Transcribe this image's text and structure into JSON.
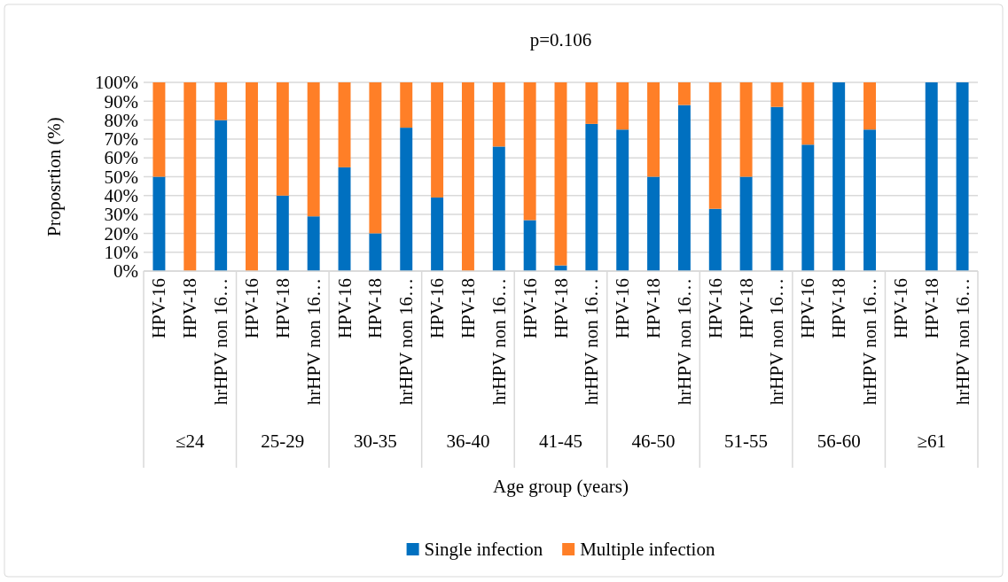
{
  "chart_data": {
    "type": "bar",
    "stacked": true,
    "title": "p=0.106",
    "xlabel": "Age group (years)",
    "ylabel": "Proposrtion (%)",
    "categories": [
      "HPV-16",
      "HPV-18",
      "hrHPV non 16…",
      "HPV-16",
      "HPV-18",
      "hrHPV non 16…",
      "HPV-16",
      "HPV-18",
      "hrHPV non 16…",
      "HPV-16",
      "HPV-18",
      "hrHPV non 16…",
      "HPV-16",
      "HPV-18",
      "hrHPV non 16…",
      "HPV-16",
      "HPV-18",
      "hrHPV non 16…",
      "HPV-16",
      "HPV-18",
      "hrHPV non 16…",
      "HPV-16",
      "HPV-18",
      "hrHPV non 16…",
      "HPV-16",
      "HPV-18",
      "hrHPV non 16…"
    ],
    "annotations": [
      "≤24",
      "25-29",
      "30-35",
      "36-40",
      "41-45",
      "46-50",
      "51-55",
      "56-60",
      "≥61"
    ],
    "series": [
      {
        "name": "Single infection",
        "color": "#0070c0",
        "values": [
          50,
          0,
          80,
          0,
          40,
          29,
          55,
          20,
          76,
          39,
          0,
          66,
          27,
          3,
          78,
          75,
          50,
          88,
          33,
          50,
          87,
          67,
          100,
          75,
          null,
          100,
          100
        ]
      },
      {
        "name": "Multiple infection",
        "color": "#ff7f27",
        "values": [
          50,
          100,
          20,
          100,
          60,
          71,
          45,
          80,
          24,
          61,
          100,
          34,
          73,
          97,
          22,
          25,
          50,
          12,
          67,
          50,
          13,
          33,
          0,
          25,
          null,
          0,
          0
        ]
      }
    ],
    "ylim": [
      0,
      100
    ],
    "yticks": [
      {
        "value": 0,
        "label": "0%"
      },
      {
        "value": 10,
        "label": "10%"
      },
      {
        "value": 20,
        "label": "20%"
      },
      {
        "value": 30,
        "label": "30%"
      },
      {
        "value": 40,
        "label": "40%"
      },
      {
        "value": 50,
        "label": "50%"
      },
      {
        "value": 60,
        "label": "60%"
      },
      {
        "value": 70,
        "label": "70%"
      },
      {
        "value": 80,
        "label": "80%"
      },
      {
        "value": 90,
        "label": "90%"
      },
      {
        "value": 100,
        "label": "100%"
      }
    ],
    "grid": "y",
    "legend": "bottom"
  }
}
